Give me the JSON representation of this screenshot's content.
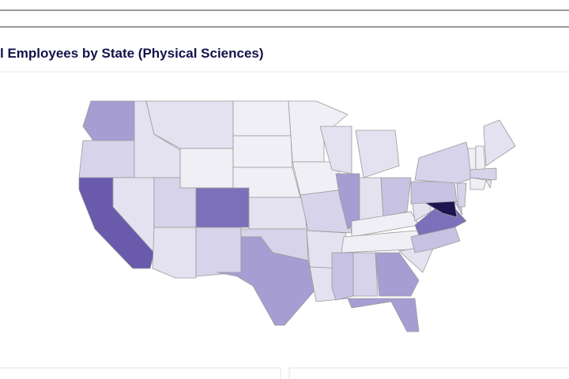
{
  "header": {
    "title": "l Employees by State (Physical Sciences)"
  }
}
